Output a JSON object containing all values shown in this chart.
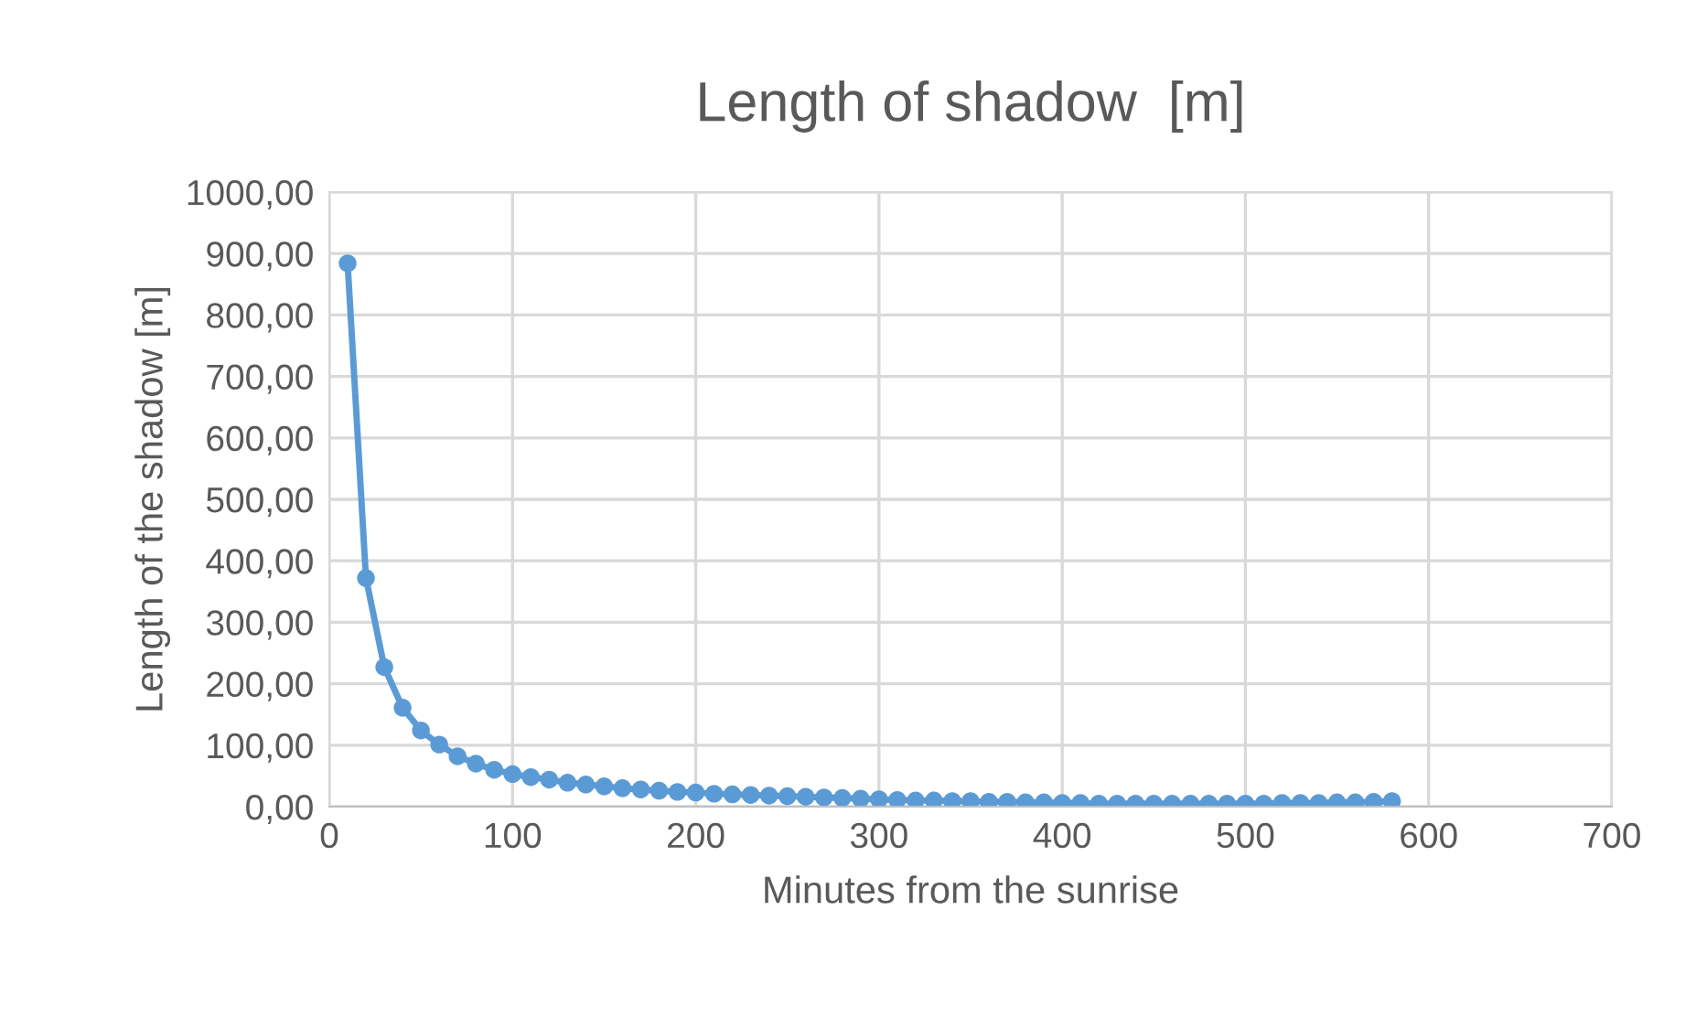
{
  "chart_data": {
    "type": "line",
    "title": "Length of shadow  [m]",
    "xlabel": "Minutes from the sunrise",
    "ylabel": "Length of the shadow [m]",
    "x": [
      10,
      20,
      30,
      40,
      50,
      60,
      70,
      80,
      90,
      100,
      110,
      120,
      130,
      140,
      150,
      160,
      170,
      180,
      190,
      200,
      210,
      220,
      230,
      240,
      250,
      260,
      270,
      280,
      290,
      300,
      310,
      320,
      330,
      340,
      350,
      360,
      370,
      380,
      390,
      400,
      410,
      420,
      430,
      440,
      450,
      460,
      470,
      480,
      490,
      500,
      510,
      520,
      530,
      540,
      550,
      560,
      570,
      580
    ],
    "series": [
      {
        "color": "#5b9bd5",
        "values": [
          884,
          372,
          227,
          161,
          124,
          101,
          82,
          70,
          60,
          53,
          48,
          44,
          39,
          36,
          33,
          30,
          28,
          26,
          24,
          23,
          21,
          20,
          19,
          18,
          17,
          16,
          15,
          14,
          13,
          12,
          11,
          10,
          10,
          9,
          9,
          8,
          8,
          7,
          7,
          6,
          6,
          5,
          5,
          5,
          5,
          5,
          5,
          5,
          5,
          5,
          5,
          6,
          6,
          6,
          7,
          7,
          8,
          9
        ]
      }
    ],
    "xlim": [
      0,
      700
    ],
    "xticks": [
      0,
      100,
      200,
      300,
      400,
      500,
      600,
      700
    ],
    "ylim": [
      0,
      1000
    ],
    "yticks": [
      {
        "value": 0,
        "label": "0,00"
      },
      {
        "value": 100,
        "label": "100,00"
      },
      {
        "value": 200,
        "label": "200,00"
      },
      {
        "value": 300,
        "label": "300,00"
      },
      {
        "value": 400,
        "label": "400,00"
      },
      {
        "value": 500,
        "label": "500,00"
      },
      {
        "value": 600,
        "label": "600,00"
      },
      {
        "value": 700,
        "label": "700,00"
      },
      {
        "value": 800,
        "label": "800,00"
      },
      {
        "value": 900,
        "label": "900,00"
      },
      {
        "value": 1000,
        "label": "1000,00"
      }
    ],
    "grid": true,
    "marker": "circle",
    "line_style": "solid",
    "legend": false
  }
}
